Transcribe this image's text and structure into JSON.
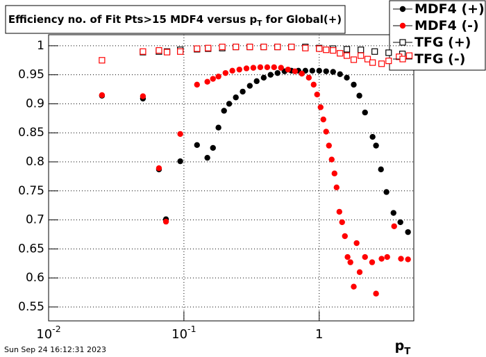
{
  "chart_data": {
    "type": "scatter",
    "title": "Efficiency no. of Fit Pts>15 MDF4 versus p_{T} for Global(+)",
    "x_label": "p_{T}",
    "timestamp": "Sun Sep 24 16:12:31 2023",
    "xscale": "log",
    "grid": true,
    "legend": "upper right",
    "xlim": [
      0.01,
      5
    ],
    "ylim": [
      0.526,
      1.019
    ],
    "xticks": [
      {
        "value": 0.01,
        "label": "10^{-2}"
      },
      {
        "value": 0.1,
        "label": "10^{-1}"
      },
      1
    ],
    "yticks": [
      0.55,
      0.6,
      0.65,
      0.7,
      0.75,
      0.8,
      0.85,
      0.9,
      0.95,
      1
    ],
    "series": [
      {
        "name": "MDF4 (+)",
        "color": "#000000",
        "marker": "circle",
        "x": [
          0.0248,
          0.0498,
          0.0654,
          0.0737,
          0.094,
          0.125,
          0.149,
          0.164,
          0.18,
          0.198,
          0.216,
          0.242,
          0.272,
          0.307,
          0.345,
          0.389,
          0.437,
          0.492,
          0.554,
          0.623,
          0.702,
          0.79,
          0.889,
          1.0,
          1.125,
          1.266,
          1.425,
          1.6,
          1.8,
          1.98,
          2.18,
          2.48,
          2.63,
          2.86,
          3.14,
          3.54,
          3.98,
          4.53
        ],
        "values": [
          0.914,
          0.909,
          0.787,
          0.701,
          0.801,
          0.829,
          0.807,
          0.824,
          0.859,
          0.888,
          0.9,
          0.911,
          0.921,
          0.931,
          0.939,
          0.945,
          0.95,
          0.953,
          0.956,
          0.957,
          0.957,
          0.957,
          0.957,
          0.957,
          0.956,
          0.955,
          0.951,
          0.945,
          0.933,
          0.914,
          0.885,
          0.843,
          0.828,
          0.787,
          0.748,
          0.712,
          0.696,
          0.679
        ]
      },
      {
        "name": "MDF4 (-)",
        "color": "#ff0000",
        "marker": "circle",
        "x": [
          0.0248,
          0.0498,
          0.0654,
          0.0737,
          0.094,
          0.125,
          0.149,
          0.164,
          0.18,
          0.203,
          0.228,
          0.257,
          0.29,
          0.326,
          0.367,
          0.413,
          0.464,
          0.522,
          0.588,
          0.662,
          0.744,
          0.838,
          0.91,
          0.965,
          1.024,
          1.073,
          1.125,
          1.18,
          1.237,
          1.297,
          1.344,
          1.409,
          1.476,
          1.548,
          1.62,
          1.7,
          1.8,
          1.89,
          1.99,
          2.18,
          2.46,
          2.63,
          2.89,
          3.18,
          3.58,
          4.02,
          4.53
        ],
        "values": [
          0.915,
          0.913,
          0.789,
          0.697,
          0.848,
          0.933,
          0.938,
          0.943,
          0.947,
          0.953,
          0.957,
          0.959,
          0.961,
          0.962,
          0.963,
          0.963,
          0.963,
          0.962,
          0.959,
          0.956,
          0.952,
          0.945,
          0.933,
          0.916,
          0.894,
          0.873,
          0.852,
          0.828,
          0.804,
          0.78,
          0.756,
          0.714,
          0.696,
          0.672,
          0.636,
          0.627,
          0.585,
          0.66,
          0.61,
          0.636,
          0.627,
          0.573,
          0.633,
          0.636,
          0.689,
          0.633,
          0.632
        ]
      },
      {
        "name": "TFG (+)",
        "color": "#000000",
        "marker": "square",
        "x": [
          0.0498,
          0.0654,
          0.075,
          0.094,
          0.125,
          0.151,
          0.192,
          0.242,
          0.307,
          0.389,
          0.492,
          0.623,
          0.79,
          1.0,
          1.266,
          1.6,
          2.03,
          2.57,
          3.26,
          4.12
        ],
        "values": [
          0.989,
          0.99,
          0.99,
          0.993,
          0.994,
          0.995,
          0.996,
          0.998,
          0.998,
          0.998,
          0.998,
          0.998,
          0.998,
          0.996,
          0.995,
          0.994,
          0.993,
          0.99,
          0.988,
          0.986
        ]
      },
      {
        "name": "TFG (-)",
        "color": "#ff0000",
        "marker": "square",
        "x": [
          0.0248,
          0.0498,
          0.0654,
          0.075,
          0.094,
          0.125,
          0.151,
          0.192,
          0.242,
          0.307,
          0.389,
          0.492,
          0.623,
          0.79,
          1.0,
          1.125,
          1.266,
          1.425,
          1.6,
          1.8,
          2.03,
          2.28,
          2.48,
          2.89,
          3.26,
          3.89,
          4.63
        ],
        "values": [
          0.975,
          0.99,
          0.992,
          0.989,
          0.99,
          0.995,
          0.996,
          0.998,
          0.998,
          0.998,
          0.998,
          0.998,
          0.998,
          0.996,
          0.995,
          0.993,
          0.992,
          0.987,
          0.983,
          0.976,
          0.983,
          0.977,
          0.971,
          0.969,
          0.974,
          0.981,
          0.983
        ]
      }
    ]
  }
}
